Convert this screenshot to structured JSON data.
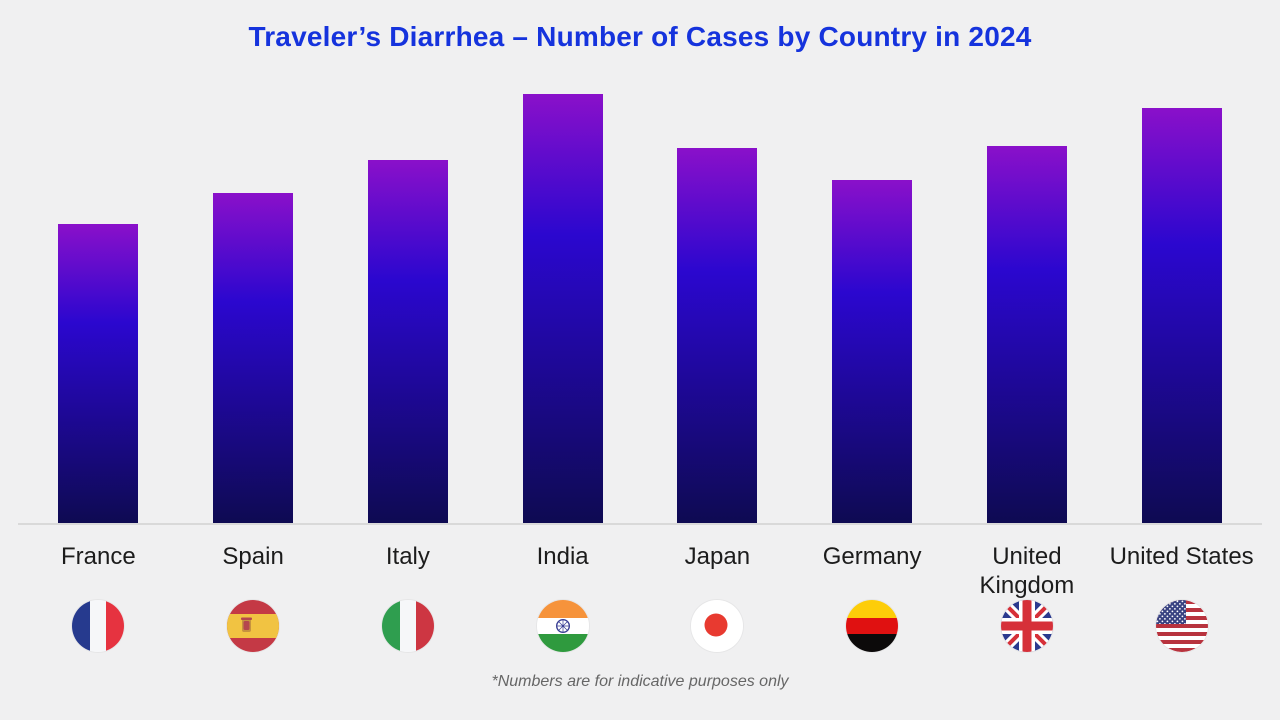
{
  "title": "Traveler’s Diarrhea – Number of Cases by Country in 2024",
  "footnote": "*Numbers are for indicative purposes only",
  "colors": {
    "background": "#f0f0f1",
    "title_text": "#1533dd",
    "bar_gradient_top": "#8a10ca",
    "bar_gradient_mid": "#2b07cf",
    "bar_gradient_bottom": "#0e0a52",
    "axis_line": "#d9d9d9",
    "label_text": "#1c1c1c",
    "footnote_text": "#666666"
  },
  "chart_data": {
    "type": "bar",
    "title": "Traveler’s Diarrhea – Number of Cases by Country in 2024",
    "categories": [
      "France",
      "Spain",
      "Italy",
      "India",
      "Japan",
      "Germany",
      "United Kingdom",
      "United States"
    ],
    "values": [
      299,
      330,
      363,
      429,
      375,
      343,
      377,
      415
    ],
    "value_units": "relative bar height in px (no numeric axis shown; numbers indicative only)",
    "xlabel": "",
    "ylabel": "",
    "ylim": [
      0,
      441
    ],
    "grid": false,
    "legend": false,
    "bar_style": "vertical gradient purple to dark navy",
    "flag_icons": [
      "france-flag-icon",
      "spain-flag-icon",
      "italy-flag-icon",
      "india-flag-icon",
      "japan-flag-icon",
      "germany-flag-icon",
      "united-kingdom-flag-icon",
      "united-states-flag-icon"
    ]
  }
}
